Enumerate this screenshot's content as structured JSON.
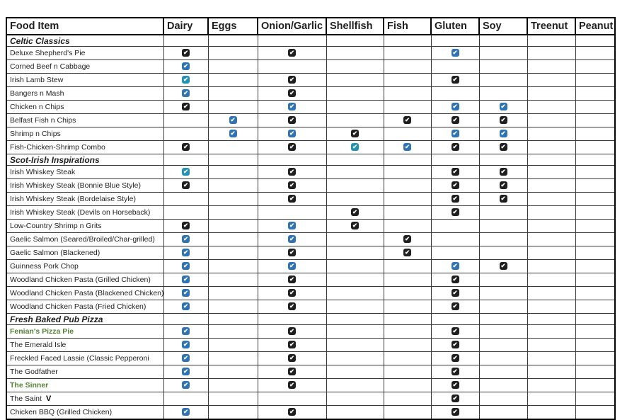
{
  "table": {
    "columns": [
      "Food Item",
      "Dairy",
      "Eggs",
      "Onion/Garlic",
      "Shellfish",
      "Fish",
      "Gluten",
      "Soy",
      "Treenut",
      "Peanut"
    ],
    "column_keys": [
      "food_item",
      "dairy",
      "eggs",
      "onion_garlic",
      "shellfish",
      "fish",
      "gluten",
      "soy",
      "treenut",
      "peanut"
    ],
    "check_colors": {
      "black": "#1f1f1f",
      "blue": "#2e74b5",
      "teal": "#2492b5"
    },
    "name_colors": {
      "default": "#1f1f1f",
      "green": "#548235"
    },
    "sections": [
      {
        "title": "Celtic Classics",
        "rows": [
          {
            "name": "Deluxe Shepherd's Pie",
            "checks": {
              "dairy": "black",
              "onion_garlic": "black",
              "gluten": "blue"
            }
          },
          {
            "name": "Corned Beef n Cabbage",
            "checks": {
              "dairy": "blue"
            }
          },
          {
            "name": "Irish Lamb Stew",
            "checks": {
              "dairy": "teal",
              "onion_garlic": "black",
              "gluten": "black"
            }
          },
          {
            "name": "Bangers n Mash",
            "checks": {
              "dairy": "blue",
              "onion_garlic": "black"
            }
          },
          {
            "name": "Chicken n Chips",
            "checks": {
              "dairy": "black",
              "onion_garlic": "blue",
              "gluten": "blue",
              "soy": "blue"
            }
          },
          {
            "name": "Belfast Fish n Chips",
            "checks": {
              "eggs": "blue",
              "onion_garlic": "black",
              "fish": "black",
              "gluten": "black",
              "soy": "black"
            }
          },
          {
            "name": "Shrimp n Chips",
            "checks": {
              "eggs": "blue",
              "onion_garlic": "blue",
              "shellfish": "black",
              "gluten": "blue",
              "soy": "blue"
            }
          },
          {
            "name": "Fish-Chicken-Shrimp Combo",
            "checks": {
              "dairy": "black",
              "onion_garlic": "black",
              "shellfish": "teal",
              "fish": "blue",
              "gluten": "black",
              "soy": "black"
            }
          }
        ]
      },
      {
        "title": "Scot-Irish Inspirations",
        "rows": [
          {
            "name": "Irish Whiskey Steak",
            "checks": {
              "dairy": "teal",
              "onion_garlic": "black",
              "gluten": "black",
              "soy": "black"
            }
          },
          {
            "name": "Irish Whiskey Steak (Bonnie Blue Style)",
            "checks": {
              "dairy": "black",
              "onion_garlic": "black",
              "gluten": "black",
              "soy": "black"
            }
          },
          {
            "name": "Irish Whiskey Steak (Bordelaise Style)",
            "checks": {
              "onion_garlic": "black",
              "gluten": "black",
              "soy": "black"
            }
          },
          {
            "name": "Irish Whiskey Steak (Devils on Horseback)",
            "checks": {
              "shellfish": "black",
              "gluten": "black"
            }
          },
          {
            "name": "Low-Country Shrimp n Grits",
            "checks": {
              "dairy": "black",
              "onion_garlic": "blue",
              "shellfish": "black"
            }
          },
          {
            "name": "Gaelic Salmon (Seared/Broiled/Char-grilled)",
            "checks": {
              "dairy": "blue",
              "onion_garlic": "blue",
              "fish": "black"
            }
          },
          {
            "name": "Gaelic Salmon (Blackened)",
            "checks": {
              "dairy": "blue",
              "onion_garlic": "black",
              "fish": "black"
            }
          },
          {
            "name": "Guinness Pork Chop",
            "checks": {
              "dairy": "blue",
              "onion_garlic": "blue",
              "gluten": "blue",
              "soy": "black"
            }
          },
          {
            "name": "Woodland Chicken Pasta (Grilled Chicken)",
            "checks": {
              "dairy": "blue",
              "onion_garlic": "black",
              "gluten": "black"
            }
          },
          {
            "name": "Woodland Chicken Pasta (Blackened Chicken)",
            "checks": {
              "dairy": "blue",
              "onion_garlic": "black",
              "gluten": "black"
            }
          },
          {
            "name": "Woodland Chicken Pasta (Fried Chicken)",
            "checks": {
              "dairy": "blue",
              "onion_garlic": "black",
              "gluten": "black"
            }
          }
        ]
      },
      {
        "title": "Fresh Baked Pub Pizza",
        "rows": [
          {
            "name": "Fenian's Pizza Pie",
            "name_color": "green",
            "bold": true,
            "checks": {
              "dairy": "blue",
              "onion_garlic": "black",
              "gluten": "black"
            }
          },
          {
            "name": "The Emerald Isle",
            "checks": {
              "dairy": "blue",
              "onion_garlic": "black",
              "gluten": "black"
            }
          },
          {
            "name": "Freckled Faced Lassie (Classic Pepperoni",
            "checks": {
              "dairy": "blue",
              "onion_garlic": "black",
              "gluten": "black"
            }
          },
          {
            "name": "The Godfather",
            "checks": {
              "dairy": "blue",
              "onion_garlic": "black",
              "gluten": "black"
            }
          },
          {
            "name": "The Sinner",
            "name_color": "green",
            "bold": true,
            "checks": {
              "dairy": "blue",
              "onion_garlic": "black",
              "gluten": "black"
            }
          },
          {
            "name": "The Saint",
            "suffix": "V",
            "checks": {
              "gluten": "black"
            }
          },
          {
            "name": "Chicken BBQ (Grilled Chicken)",
            "checks": {
              "dairy": "blue",
              "onion_garlic": "black",
              "gluten": "black"
            }
          }
        ]
      }
    ]
  },
  "checkmark_glyph": "✔"
}
